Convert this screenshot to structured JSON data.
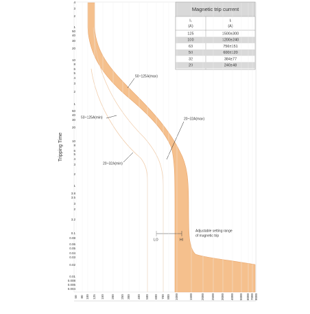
{
  "chart_data": {
    "type": "band",
    "y_axis_label": "Tripping Time",
    "y_labels": [
      "4",
      "3",
      "2",
      "1",
      "50",
      "40",
      "30",
      "20",
      "10",
      "8",
      "6",
      "5",
      "4",
      "3",
      "2",
      "1",
      "50",
      "40",
      "30",
      "20",
      "10",
      "8",
      "6",
      "5",
      "4",
      "3",
      "2",
      "1",
      "3.8",
      "3.5",
      "3",
      "2",
      "3.2",
      "0.1",
      "0.08",
      "0.06",
      "0.05",
      "0.04",
      "0.03",
      "0.02",
      "0.01",
      "0.008",
      "0.006",
      "0.004"
    ],
    "x_labels": [
      "50",
      "80",
      "100",
      "125",
      "150",
      "200",
      "250",
      "300",
      "400",
      "500",
      "600",
      "700",
      "800",
      "1000",
      "1500",
      "2000",
      "2500",
      "3000",
      "4000",
      "5000",
      "6000",
      "7000",
      "8000"
    ],
    "annotations": [
      "50~125A(max)",
      "50~125A(min)",
      "20~32A(max)",
      "20~32A(min)",
      "Adjustable setting range",
      "of magnetic trip",
      "LO",
      "HI"
    ],
    "table": {
      "title": "Magnetic trip current",
      "headers": [
        [
          "Iₛ",
          "(A)"
        ],
        [
          "Iᵢ",
          "(A)"
        ]
      ],
      "rows": [
        [
          "125",
          "1500±300"
        ],
        [
          "100",
          "1200±240"
        ],
        [
          "63",
          "756±151"
        ],
        [
          "50",
          "600±120"
        ],
        [
          "32",
          "384±77"
        ],
        [
          "20",
          "240±48"
        ]
      ]
    }
  }
}
